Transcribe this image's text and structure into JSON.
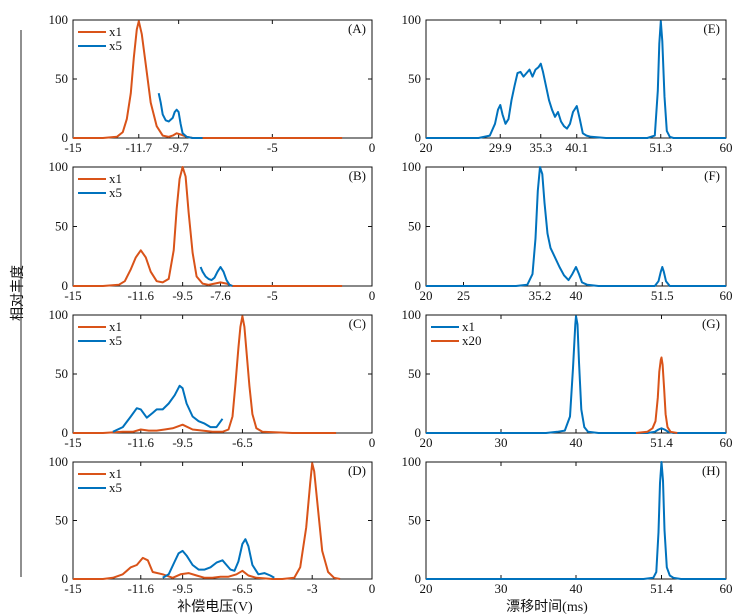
{
  "figure": {
    "ylabel": "相对丰度",
    "xlabel_left": "补偿电压(V)",
    "xlabel_right": "漂移时间(ms)"
  },
  "colors": {
    "orange": "#D95319",
    "blue": "#0072BD"
  },
  "chart_data": [
    {
      "id": "A",
      "title": "(A)",
      "type": "line",
      "xlim": [
        -15,
        0
      ],
      "ylim": [
        0,
        100
      ],
      "xticks": [
        -15,
        -11.7,
        -9.7,
        -5,
        0
      ],
      "yticks": [
        0,
        50,
        100
      ],
      "series": [
        {
          "name": "x1",
          "color": "orange",
          "x": [
            -15,
            -13.5,
            -12.8,
            -12.5,
            -12.3,
            -12.1,
            -11.95,
            -11.8,
            -11.7,
            -11.55,
            -11.35,
            -11.1,
            -10.8,
            -10.5,
            -10.2,
            -10.0,
            -9.8,
            -9.6,
            -9.3,
            -9.0,
            -7,
            -5,
            -3,
            -1.5
          ],
          "y": [
            0,
            0,
            1,
            5,
            16,
            38,
            68,
            92,
            99,
            88,
            62,
            30,
            10,
            2,
            1,
            2,
            4,
            3,
            1,
            0,
            0,
            0,
            0,
            0
          ]
        },
        {
          "name": "x5",
          "color": "blue",
          "x": [
            -10.7,
            -10.6,
            -10.5,
            -10.35,
            -10.2,
            -10.0,
            -9.9,
            -9.8,
            -9.7,
            -9.6,
            -9.5,
            -9.3,
            -9.0,
            -8.5
          ],
          "y": [
            38,
            30,
            20,
            15,
            14,
            17,
            22,
            24,
            22,
            12,
            4,
            1,
            0,
            0
          ]
        }
      ]
    },
    {
      "id": "B",
      "title": "(B)",
      "type": "line",
      "xlim": [
        -15,
        0
      ],
      "ylim": [
        0,
        100
      ],
      "xticks": [
        -15,
        -11.6,
        -9.5,
        -7.6,
        -5,
        0
      ],
      "yticks": [
        0,
        50,
        100
      ],
      "series": [
        {
          "name": "x1",
          "color": "orange",
          "x": [
            -15,
            -13.5,
            -12.7,
            -12.4,
            -12.1,
            -11.85,
            -11.6,
            -11.35,
            -11.1,
            -10.8,
            -10.5,
            -10.2,
            -9.95,
            -9.8,
            -9.65,
            -9.5,
            -9.35,
            -9.2,
            -9.0,
            -8.8,
            -8.5,
            -8.2,
            -7.9,
            -7.6,
            -7.3,
            -7.0,
            -5,
            -3,
            -1.5
          ],
          "y": [
            0,
            0,
            1,
            4,
            14,
            24,
            30,
            24,
            12,
            4,
            3,
            6,
            30,
            65,
            90,
            100,
            92,
            62,
            28,
            8,
            2,
            1,
            2,
            3,
            2,
            0,
            0,
            0,
            0
          ]
        },
        {
          "name": "x5",
          "color": "blue",
          "x": [
            -8.6,
            -8.5,
            -8.35,
            -8.2,
            -8.05,
            -7.9,
            -7.75,
            -7.6,
            -7.45,
            -7.3,
            -7.15,
            -7.0
          ],
          "y": [
            16,
            12,
            8,
            6,
            5,
            7,
            12,
            16,
            12,
            5,
            1,
            0
          ]
        }
      ]
    },
    {
      "id": "C",
      "title": "(C)",
      "type": "line",
      "xlim": [
        -15,
        0
      ],
      "ylim": [
        0,
        100
      ],
      "xticks": [
        -15,
        -11.6,
        -9.5,
        -6.5,
        0
      ],
      "yticks": [
        0,
        50,
        100
      ],
      "series": [
        {
          "name": "x1",
          "color": "orange",
          "x": [
            -15,
            -13.5,
            -12.5,
            -12.0,
            -11.6,
            -11.2,
            -10.8,
            -10.4,
            -10.0,
            -9.5,
            -9.0,
            -8.5,
            -8.0,
            -7.5,
            -7.2,
            -7.0,
            -6.85,
            -6.7,
            -6.6,
            -6.5,
            -6.4,
            -6.3,
            -6.15,
            -6.0,
            -5.8,
            -5.5,
            -4,
            -2.5,
            -1.8
          ],
          "y": [
            0,
            0,
            1,
            1,
            3,
            2,
            2,
            3,
            4,
            7,
            3,
            2,
            1,
            1,
            3,
            14,
            42,
            72,
            90,
            99,
            90,
            70,
            40,
            16,
            4,
            1,
            0,
            0,
            0
          ]
        },
        {
          "name": "x5",
          "color": "blue",
          "x": [
            -13.0,
            -12.5,
            -12.1,
            -11.8,
            -11.6,
            -11.3,
            -11.0,
            -10.8,
            -10.5,
            -10.2,
            -9.9,
            -9.65,
            -9.5,
            -9.3,
            -9.0,
            -8.7,
            -8.4,
            -8.1,
            -7.8,
            -7.5
          ],
          "y": [
            1,
            5,
            14,
            21,
            20,
            13,
            17,
            20,
            20,
            25,
            32,
            40,
            38,
            25,
            14,
            10,
            8,
            5,
            5,
            12
          ]
        }
      ]
    },
    {
      "id": "D",
      "title": "(D)",
      "type": "line",
      "xlim": [
        -15,
        0
      ],
      "ylim": [
        0,
        100
      ],
      "xticks": [
        -15,
        -11.6,
        -9.5,
        -6.5,
        -3.0,
        0
      ],
      "yticks": [
        0,
        50,
        100
      ],
      "series": [
        {
          "name": "x1",
          "color": "orange",
          "x": [
            -15,
            -13.5,
            -13.0,
            -12.5,
            -12.1,
            -11.8,
            -11.5,
            -11.25,
            -11.0,
            -10.5,
            -10.0,
            -9.6,
            -9.2,
            -8.8,
            -8.4,
            -8.0,
            -7.6,
            -7.2,
            -6.8,
            -6.5,
            -6.2,
            -5.8,
            -5.0,
            -4.5,
            -3.9,
            -3.6,
            -3.3,
            -3.1,
            -3.0,
            -2.9,
            -2.7,
            -2.5,
            -2.2,
            -1.9,
            -1.6
          ],
          "y": [
            0,
            0,
            1,
            4,
            10,
            12,
            18,
            16,
            6,
            4,
            1,
            4,
            5,
            3,
            1,
            1,
            2,
            2,
            4,
            7,
            3,
            1,
            0,
            0,
            1,
            10,
            44,
            82,
            99,
            92,
            58,
            24,
            6,
            1,
            0
          ]
        },
        {
          "name": "x5",
          "color": "blue",
          "x": [
            -10.5,
            -10.2,
            -9.9,
            -9.7,
            -9.5,
            -9.3,
            -9.0,
            -8.7,
            -8.4,
            -8.1,
            -7.8,
            -7.5,
            -7.3,
            -7.1,
            -6.9,
            -6.7,
            -6.5,
            -6.35,
            -6.2,
            -6.0,
            -5.7,
            -5.4,
            -5.1,
            -4.9
          ],
          "y": [
            1,
            4,
            15,
            22,
            24,
            20,
            12,
            8,
            8,
            10,
            14,
            16,
            12,
            8,
            7,
            15,
            30,
            34,
            28,
            12,
            4,
            5,
            3,
            1
          ]
        }
      ]
    },
    {
      "id": "E",
      "title": "(E)",
      "type": "line",
      "xlim": [
        20,
        60
      ],
      "ylim": [
        0,
        100
      ],
      "xticks": [
        20,
        29.9,
        35.3,
        40.1,
        51.3,
        60
      ],
      "yticks": [
        0,
        50,
        100
      ],
      "series": [
        {
          "name": "",
          "color": "blue",
          "x": [
            20,
            27,
            28.5,
            29.2,
            29.6,
            29.9,
            30.2,
            30.6,
            31.0,
            31.4,
            31.8,
            32.2,
            32.6,
            33.0,
            33.4,
            33.8,
            34.2,
            34.6,
            35.0,
            35.3,
            35.6,
            36.0,
            36.4,
            36.8,
            37.2,
            37.6,
            38.0,
            38.4,
            38.8,
            39.2,
            39.6,
            40.1,
            40.5,
            40.9,
            41.4,
            42,
            44,
            47,
            49.5,
            50.5,
            50.9,
            51.1,
            51.3,
            51.5,
            51.8,
            52.1,
            52.5,
            53,
            56,
            60
          ],
          "y": [
            0,
            0,
            2,
            12,
            24,
            28,
            20,
            12,
            16,
            32,
            44,
            55,
            56,
            52,
            55,
            58,
            52,
            58,
            60,
            63,
            56,
            44,
            32,
            24,
            18,
            22,
            14,
            10,
            8,
            12,
            22,
            27,
            16,
            4,
            2,
            1,
            0,
            0,
            0,
            2,
            40,
            80,
            99,
            82,
            35,
            6,
            1,
            0,
            0,
            0
          ]
        }
      ]
    },
    {
      "id": "F",
      "title": "(F)",
      "type": "line",
      "xlim": [
        20,
        60
      ],
      "ylim": [
        0,
        100
      ],
      "xticks": [
        20,
        25,
        35.2,
        40.0,
        51.5,
        60
      ],
      "yticks": [
        0,
        50,
        100
      ],
      "series": [
        {
          "name": "",
          "color": "blue",
          "x": [
            20,
            30,
            32,
            33.5,
            34.2,
            34.6,
            34.9,
            35.2,
            35.5,
            35.8,
            36.2,
            36.6,
            37.2,
            37.8,
            38.4,
            39.0,
            39.5,
            40.0,
            40.4,
            40.8,
            41.5,
            43,
            46,
            49,
            50.5,
            51.0,
            51.3,
            51.5,
            51.7,
            52.0,
            52.5,
            54,
            60
          ],
          "y": [
            0,
            0,
            0,
            1,
            10,
            40,
            80,
            100,
            94,
            70,
            44,
            32,
            24,
            16,
            9,
            5,
            10,
            16,
            10,
            3,
            1,
            0,
            0,
            0,
            0,
            4,
            12,
            16,
            12,
            4,
            0,
            0,
            0
          ]
        }
      ]
    },
    {
      "id": "G",
      "title": "(G)",
      "type": "line",
      "xlim": [
        20,
        60
      ],
      "ylim": [
        0,
        100
      ],
      "xticks": [
        20,
        30,
        40.0,
        51.4,
        60
      ],
      "yticks": [
        0,
        50,
        100
      ],
      "series": [
        {
          "name": "x1",
          "color": "blue",
          "x": [
            20,
            36,
            37.5,
            38.5,
            39.2,
            39.6,
            39.9,
            40.0,
            40.2,
            40.4,
            40.7,
            41.1,
            41.6,
            43,
            49.5,
            50.5,
            51.0,
            51.4,
            51.8,
            52.3,
            53,
            60
          ],
          "y": [
            0,
            0,
            1,
            2,
            14,
            55,
            92,
            99,
            92,
            60,
            20,
            5,
            1,
            0,
            0,
            1,
            3,
            4,
            3,
            1,
            0,
            0
          ]
        },
        {
          "name": "x20",
          "color": "orange",
          "x": [
            48,
            49.5,
            50.2,
            50.6,
            50.9,
            51.1,
            51.3,
            51.4,
            51.55,
            51.75,
            51.95,
            52.2,
            52.6,
            53.5
          ],
          "y": [
            0,
            1,
            4,
            10,
            30,
            52,
            62,
            64,
            58,
            38,
            16,
            5,
            1,
            0
          ]
        }
      ]
    },
    {
      "id": "H",
      "title": "(H)",
      "type": "line",
      "xlim": [
        20,
        60
      ],
      "ylim": [
        0,
        100
      ],
      "xticks": [
        20,
        30,
        40,
        51.4,
        60
      ],
      "yticks": [
        0,
        50,
        100
      ],
      "series": [
        {
          "name": "",
          "color": "blue",
          "x": [
            20,
            49,
            50.3,
            50.7,
            51.0,
            51.2,
            51.4,
            51.6,
            51.8,
            52.1,
            52.5,
            53,
            54,
            60
          ],
          "y": [
            0,
            0,
            1,
            6,
            40,
            82,
            100,
            84,
            42,
            10,
            3,
            1,
            0,
            0
          ]
        }
      ]
    }
  ]
}
